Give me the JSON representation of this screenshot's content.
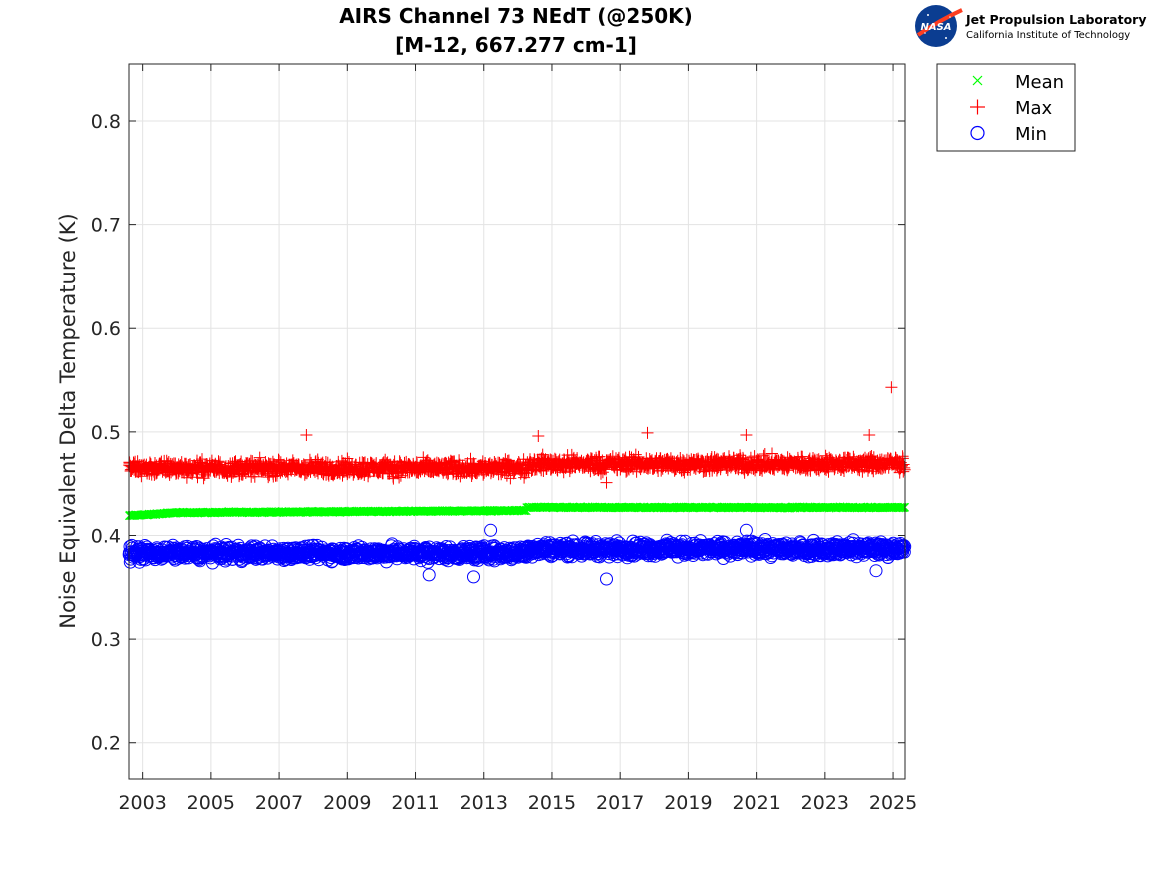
{
  "chart_data": {
    "type": "scatter",
    "title_line1": "AIRS Channel 73 NEdT (@250K)",
    "title_line2": "[M-12, 667.277 cm-1]",
    "xlabel": "",
    "ylabel": "Noise Equivalent Delta Temperature (K)",
    "xlim": [
      2002.6,
      2025.35
    ],
    "ylim": [
      0.165,
      0.855
    ],
    "x_ticks": [
      "2003",
      "2005",
      "2007",
      "2009",
      "2011",
      "2013",
      "2015",
      "2017",
      "2019",
      "2021",
      "2023",
      "2025"
    ],
    "y_ticks": [
      "0.2",
      "0.3",
      "0.4",
      "0.5",
      "0.6",
      "0.7",
      "0.8"
    ],
    "grid": true,
    "legend_position": "outside-top-right",
    "series": [
      {
        "name": "Mean",
        "marker": "x",
        "color": "#00ff00",
        "segments": [
          {
            "x_start": 2002.6,
            "x_end": 2004.0,
            "y_start": 0.419,
            "y_end": 0.422
          },
          {
            "x_start": 2004.0,
            "x_end": 2014.25,
            "y_start": 0.422,
            "y_end": 0.424
          },
          {
            "x_start": 2014.25,
            "x_end": 2025.35,
            "y_start": 0.427,
            "y_end": 0.427
          }
        ]
      },
      {
        "name": "Max",
        "marker": "+",
        "color": "#ff0000",
        "segments": [
          {
            "x_start": 2002.6,
            "x_end": 2014.25,
            "y_center": 0.465,
            "spread": 0.011
          },
          {
            "x_start": 2014.25,
            "x_end": 2025.35,
            "y_center": 0.469,
            "spread": 0.011
          }
        ],
        "outliers": [
          {
            "x": 2007.8,
            "y": 0.497
          },
          {
            "x": 2014.6,
            "y": 0.496
          },
          {
            "x": 2017.8,
            "y": 0.499
          },
          {
            "x": 2020.7,
            "y": 0.497
          },
          {
            "x": 2024.3,
            "y": 0.497
          },
          {
            "x": 2024.95,
            "y": 0.543
          },
          {
            "x": 2016.6,
            "y": 0.451
          }
        ]
      },
      {
        "name": "Min",
        "marker": "o",
        "color": "#0000ff",
        "segments": [
          {
            "x_start": 2002.6,
            "x_end": 2014.25,
            "y_center": 0.383,
            "spread": 0.01
          },
          {
            "x_start": 2014.25,
            "x_end": 2025.35,
            "y_center": 0.387,
            "spread": 0.01
          }
        ],
        "outliers": [
          {
            "x": 2013.2,
            "y": 0.405
          },
          {
            "x": 2020.7,
            "y": 0.405
          },
          {
            "x": 2012.7,
            "y": 0.36
          },
          {
            "x": 2016.6,
            "y": 0.358
          },
          {
            "x": 2011.4,
            "y": 0.362
          },
          {
            "x": 2024.5,
            "y": 0.366
          }
        ]
      }
    ]
  },
  "logo": {
    "badge_text": "NASA",
    "title": "Jet Propulsion Laboratory",
    "subtitle": "California Institute of Technology"
  }
}
